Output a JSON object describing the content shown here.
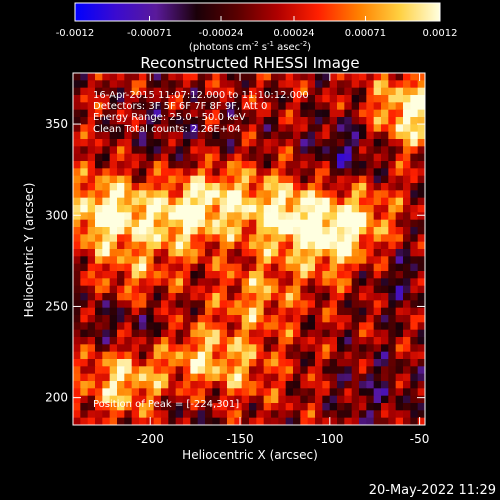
{
  "chart_data": {
    "type": "heatmap",
    "title": "Reconstructed RHESSI Image",
    "xlabel": "Heliocentric X (arcsec)",
    "ylabel": "Heliocentric Y (arcsec)",
    "xlim": [
      -243,
      -47
    ],
    "ylim": [
      185,
      378
    ],
    "x_ticks": [
      -200,
      -150,
      -100,
      -50
    ],
    "y_ticks": [
      200,
      250,
      300,
      350
    ],
    "colorbar": {
      "range": [
        -0.0012,
        0.0012
      ],
      "ticks": [
        "-0.0012",
        "-0.00071",
        "-0.00024",
        "0.00024",
        "0.00071",
        "0.0012"
      ],
      "label_parts": [
        "(photons cm",
        "-2",
        " s",
        "-1",
        " asec",
        "-2",
        ")"
      ],
      "colors": [
        "#0000ff",
        "#3a0bd0",
        "#5a1a9a",
        "#1a0008",
        "#5a0000",
        "#b00000",
        "#ff2000",
        "#ff8000",
        "#ffd040",
        "#ffffe0"
      ]
    },
    "annotations": [
      "16-Apr-2015 11:07:12.000 to 11:10:12.000",
      "Detectors: 3F 5F 6F 7F 8F 9F, Att 0",
      "Energy Range: 25.0 - 50.0 keV",
      "Clean     Total counts: 2.26E+04"
    ],
    "peak_label": "Position of Peak = [-224,301]",
    "peak": [
      -224,
      301
    ],
    "bright_regions": [
      {
        "x": -224,
        "y": 301,
        "level": 0.0012
      },
      {
        "x": -185,
        "y": 298,
        "level": 0.0009
      },
      {
        "x": -160,
        "y": 310,
        "level": 0.0008
      },
      {
        "x": -125,
        "y": 300,
        "level": 0.001
      },
      {
        "x": -100,
        "y": 285,
        "level": 0.0008
      },
      {
        "x": -85,
        "y": 300,
        "level": 0.0007
      },
      {
        "x": -55,
        "y": 357,
        "level": 0.0011
      },
      {
        "x": -215,
        "y": 210,
        "level": 0.0009
      },
      {
        "x": -175,
        "y": 222,
        "level": 0.0007
      },
      {
        "x": -140,
        "y": 255,
        "level": 0.0006
      },
      {
        "x": -210,
        "y": 262,
        "level": 0.0006
      },
      {
        "x": -150,
        "y": 215,
        "level": 0.0005
      }
    ],
    "dim_regions": [
      {
        "x": -90,
        "y": 335,
        "level": -0.0006
      },
      {
        "x": -60,
        "y": 265,
        "level": -0.0004
      },
      {
        "x": -195,
        "y": 345,
        "level": -0.0003
      },
      {
        "x": -225,
        "y": 245,
        "level": -0.0004
      },
      {
        "x": -175,
        "y": 195,
        "level": -0.0003
      },
      {
        "x": -75,
        "y": 205,
        "level": -0.0004
      },
      {
        "x": -160,
        "y": 340,
        "level": -0.0002
      },
      {
        "x": -200,
        "y": 240,
        "level": -0.0004
      }
    ],
    "grid": false
  },
  "footer": {
    "timestamp": "20-May-2022 11:29"
  }
}
